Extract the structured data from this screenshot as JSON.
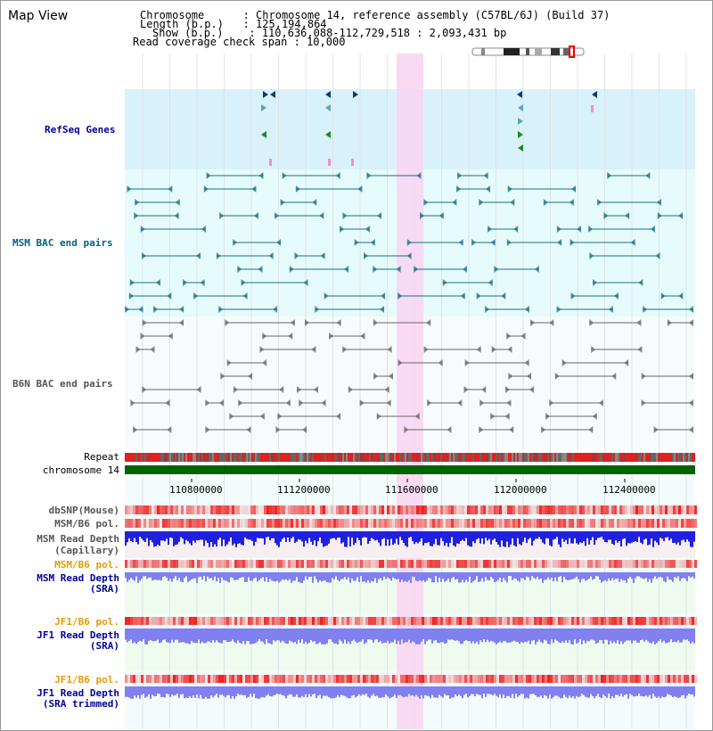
{
  "view_title": "Map View",
  "info": {
    "chromosome_label": "Chromosome      : ",
    "chromosome_value": "Chromosome 14, reference assembly (C57BL/6J) (Build 37)",
    "length_label": "Length (b.p.)   : ",
    "length_value": "125,194,864",
    "show_label": "Show (b.p.)    : ",
    "show_value": "110,636,088-112,729,518 : 2,093,431 bp",
    "coverage_label": "Read coverage check span : ",
    "coverage_value": "10,000"
  },
  "tracks": {
    "refseq": "RefSeq Genes",
    "msm_bac": "MSM BAC end pairs",
    "b6n_bac": "B6N BAC end pairs",
    "repeat": "Repeat",
    "chromosome": "chromosome 14",
    "dbsnp": "dbSNP(Mouse)",
    "msm_b6_pol_1": "MSM/B6 pol.",
    "msm_read_depth_cap_1": "MSM Read Depth",
    "msm_read_depth_cap_2": "(Capillary)",
    "msm_b6_pol_2": "MSM/B6 pol.",
    "msm_read_depth_sra_1": "MSM Read Depth",
    "msm_read_depth_sra_2": "(SRA)",
    "jf1_b6_pol_1": "JF1/B6 pol.",
    "jf1_read_depth_sra_1": "JF1 Read Depth",
    "jf1_read_depth_sra_2": "(SRA)",
    "jf1_b6_pol_2": "JF1/B6 pol.",
    "jf1_read_depth_trim_1": "JF1 Read Depth",
    "jf1_read_depth_trim_2": "(SRA trimmed)"
  },
  "axis": {
    "ticks": [
      "110800000",
      "111200000",
      "111600000",
      "112000000",
      "112400000"
    ]
  },
  "colors": {
    "refseq_bg": "#d9f1fb",
    "msm_bg": "#e6fbfb",
    "b6n_bg": "#f7fbfb",
    "highlight": "#f9d3f1",
    "chromosome": "#006400",
    "label_blue": "#00009c",
    "label_teal": "#006080",
    "label_orange": "#e69b00",
    "msm_feature": "#1a6f87",
    "b6n_feature": "#666666",
    "depth_dark": "#2020e0",
    "depth_light": "#8080f0"
  },
  "icons": {
    "ideogram": "chromosome-ideogram-icon"
  }
}
